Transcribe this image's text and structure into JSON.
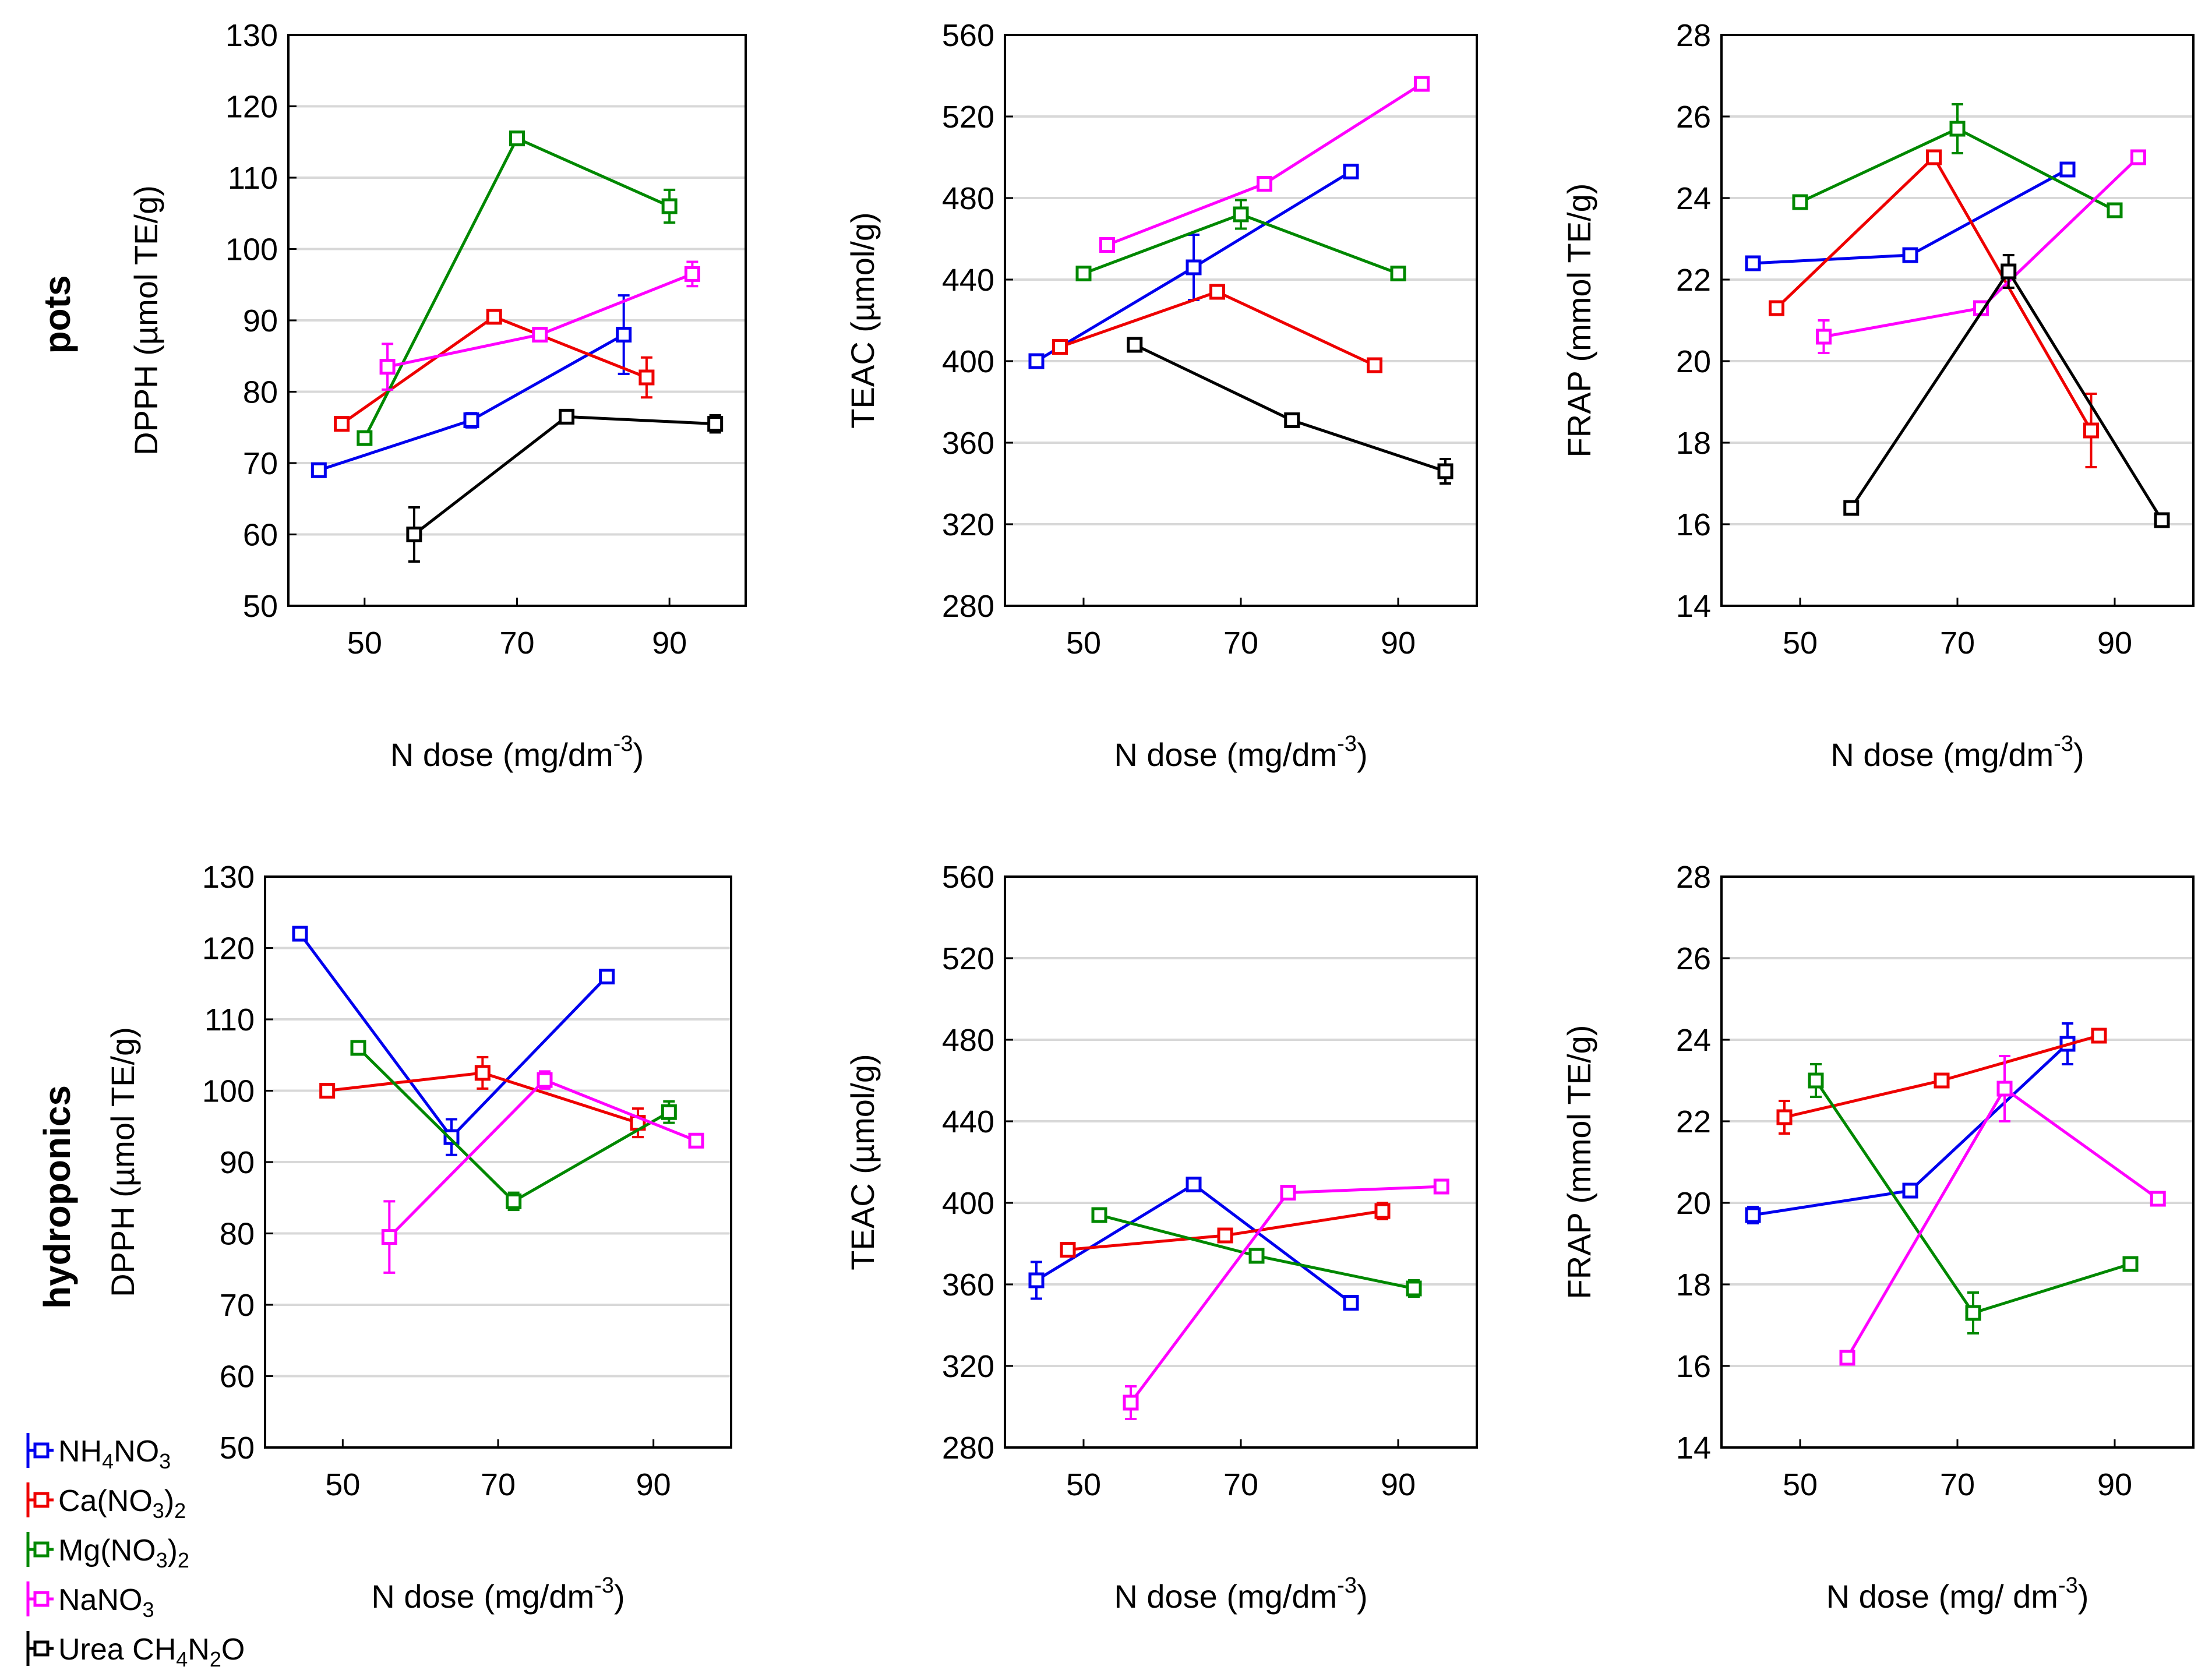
{
  "figure": {
    "row_labels": [
      "pots",
      "hydroponics"
    ],
    "legend": [
      {
        "name": "NH4NO3",
        "parts": [
          [
            "NH",
            ""
          ],
          [
            "4",
            "sub"
          ],
          [
            "NO",
            ""
          ],
          [
            "3",
            "sub"
          ]
        ],
        "color": "#0000ee"
      },
      {
        "name": "Ca(NO3)2",
        "parts": [
          [
            "Ca(NO",
            ""
          ],
          [
            "3",
            "sub"
          ],
          [
            ")",
            ""
          ],
          [
            "2",
            "sub"
          ]
        ],
        "color": "#ee0000"
      },
      {
        "name": "Mg(NO3)2",
        "parts": [
          [
            "Mg(NO",
            ""
          ],
          [
            "3",
            "sub"
          ],
          [
            ")",
            ""
          ],
          [
            "2",
            "sub"
          ]
        ],
        "color": "#008800"
      },
      {
        "name": "NaNO3",
        "parts": [
          [
            "NaNO",
            ""
          ],
          [
            "3",
            "sub"
          ]
        ],
        "color": "#ff00ff"
      },
      {
        "name": "Urea CH4N2O",
        "parts": [
          [
            "Urea CH",
            ""
          ],
          [
            "4",
            "sub"
          ],
          [
            "N",
            ""
          ],
          [
            "2",
            "sub"
          ],
          [
            "O",
            ""
          ]
        ],
        "color": "#000000"
      }
    ]
  },
  "chart_data": [
    {
      "type": "line",
      "title": "",
      "row": "pots",
      "ylabel": "DPPH (µmol TE/g)",
      "xlabel_main": "N dose (mg/dm",
      "xlabel_sup": "-3",
      "xlabel_end": ")",
      "xlim": [
        40,
        100
      ],
      "xticks": [
        50,
        70,
        90
      ],
      "ylim": [
        50,
        130
      ],
      "yticks": [
        50,
        60,
        70,
        80,
        90,
        100,
        110,
        120,
        130
      ],
      "series": [
        {
          "name": "NH4NO3",
          "color": "#0000ee",
          "x": [
            44,
            64,
            84
          ],
          "y": [
            69,
            76,
            88
          ],
          "err": [
            0.8,
            1,
            5.5
          ]
        },
        {
          "name": "Ca(NO3)2",
          "color": "#ee0000",
          "x": [
            47,
            67,
            87
          ],
          "y": [
            75.5,
            90.5,
            82
          ],
          "err": [
            0.5,
            0.7,
            2.8
          ]
        },
        {
          "name": "Mg(NO3)2",
          "color": "#008800",
          "x": [
            50,
            70,
            90
          ],
          "y": [
            73.5,
            115.5,
            106
          ],
          "err": [
            0.8,
            0.5,
            2.3
          ]
        },
        {
          "name": "NaNO3",
          "color": "#ff00ff",
          "x": [
            53,
            73,
            93
          ],
          "y": [
            83.5,
            88,
            96.5
          ],
          "err": [
            3.2,
            0.7,
            1.7
          ]
        },
        {
          "name": "Urea CH4N2O",
          "color": "#000000",
          "x": [
            56.5,
            76.5,
            96
          ],
          "y": [
            60,
            76.5,
            75.5
          ],
          "err": [
            3.8,
            0.7,
            1.2
          ]
        }
      ]
    },
    {
      "type": "line",
      "title": "",
      "row": "pots",
      "ylabel": "TEAC (µmol/g)",
      "xlabel_main": "N dose (mg/dm",
      "xlabel_sup": "-3",
      "xlabel_end": ")",
      "xlim": [
        40,
        100
      ],
      "xticks": [
        50,
        70,
        90
      ],
      "ylim": [
        280,
        560
      ],
      "yticks": [
        280,
        320,
        360,
        400,
        440,
        480,
        520,
        560
      ],
      "series": [
        {
          "name": "NH4NO3",
          "color": "#0000ee",
          "x": [
            44,
            64,
            84
          ],
          "y": [
            400,
            446,
            493
          ],
          "err": [
            2,
            16,
            3
          ]
        },
        {
          "name": "Ca(NO3)2",
          "color": "#ee0000",
          "x": [
            47,
            67,
            87
          ],
          "y": [
            407,
            434,
            398
          ],
          "err": [
            2,
            3,
            2
          ]
        },
        {
          "name": "Mg(NO3)2",
          "color": "#008800",
          "x": [
            50,
            70,
            90
          ],
          "y": [
            443,
            472,
            443
          ],
          "err": [
            2,
            7,
            2
          ]
        },
        {
          "name": "NaNO3",
          "color": "#ff00ff",
          "x": [
            53,
            73,
            93
          ],
          "y": [
            457,
            487,
            536
          ],
          "err": [
            2,
            2,
            2
          ]
        },
        {
          "name": "Urea CH4N2O",
          "color": "#000000",
          "x": [
            56.5,
            76.5,
            96
          ],
          "y": [
            408,
            371,
            346
          ],
          "err": [
            2,
            2,
            6
          ]
        }
      ]
    },
    {
      "type": "line",
      "title": "",
      "row": "pots",
      "ylabel": "FRAP (mmol TE/g)",
      "xlabel_main": "N dose (mg/dm",
      "xlabel_sup": "-3",
      "xlabel_end": ")",
      "xlim": [
        40,
        100
      ],
      "xticks": [
        50,
        70,
        90
      ],
      "ylim": [
        14,
        28
      ],
      "yticks": [
        14,
        16,
        18,
        20,
        22,
        24,
        26,
        28
      ],
      "series": [
        {
          "name": "NH4NO3",
          "color": "#0000ee",
          "x": [
            44,
            64,
            84
          ],
          "y": [
            22.4,
            22.6,
            24.7
          ],
          "err": [
            0.1,
            0.1,
            0.1
          ]
        },
        {
          "name": "Ca(NO3)2",
          "color": "#ee0000",
          "x": [
            47,
            67,
            87
          ],
          "y": [
            21.3,
            25,
            18.3
          ],
          "err": [
            0.1,
            0.1,
            0.9
          ]
        },
        {
          "name": "Mg(NO3)2",
          "color": "#008800",
          "x": [
            50,
            70,
            90
          ],
          "y": [
            23.9,
            25.7,
            23.7
          ],
          "err": [
            0.1,
            0.6,
            0.1
          ]
        },
        {
          "name": "NaNO3",
          "color": "#ff00ff",
          "x": [
            53,
            73,
            93
          ],
          "y": [
            20.6,
            21.3,
            25
          ],
          "err": [
            0.4,
            0.1,
            0.1
          ]
        },
        {
          "name": "Urea CH4N2O",
          "color": "#000000",
          "x": [
            56.5,
            76.5,
            96
          ],
          "y": [
            16.4,
            22.2,
            16.1
          ],
          "err": [
            0.1,
            0.4,
            0.1
          ]
        }
      ]
    },
    {
      "type": "line",
      "title": "",
      "row": "hydroponics",
      "ylabel": "DPPH (µmol TE/g)",
      "xlabel_main": "N dose (mg/dm",
      "xlabel_sup": "-3",
      "xlabel_end": ")",
      "xlim": [
        40,
        100
      ],
      "xticks": [
        50,
        70,
        90
      ],
      "ylim": [
        50,
        130
      ],
      "yticks": [
        50,
        60,
        70,
        80,
        90,
        100,
        110,
        120,
        130
      ],
      "series": [
        {
          "name": "NH4NO3",
          "color": "#0000ee",
          "x": [
            44.5,
            64,
            84
          ],
          "y": [
            122,
            93.5,
            116
          ],
          "err": [
            0.5,
            2.5,
            0.5
          ]
        },
        {
          "name": "Ca(NO3)2",
          "color": "#ee0000",
          "x": [
            48,
            68,
            88
          ],
          "y": [
            100,
            102.5,
            95.5
          ],
          "err": [
            0.5,
            2.2,
            2
          ]
        },
        {
          "name": "Mg(NO3)2",
          "color": "#008800",
          "x": [
            52,
            72,
            92
          ],
          "y": [
            106,
            84.5,
            97
          ],
          "err": [
            0.8,
            1.2,
            1.5
          ]
        },
        {
          "name": "NaNO3",
          "color": "#ff00ff",
          "x": [
            56,
            76,
            95.5
          ],
          "y": [
            79.5,
            101.5,
            93
          ],
          "err": [
            5,
            1.2,
            0.5
          ]
        }
      ]
    },
    {
      "type": "line",
      "title": "",
      "row": "hydroponics",
      "ylabel": "TEAC (µmol/g)",
      "xlabel_main": "N dose (mg/dm",
      "xlabel_sup": "-3",
      "xlabel_end": ")",
      "xlim": [
        40,
        100
      ],
      "xticks": [
        50,
        70,
        90
      ],
      "ylim": [
        280,
        560
      ],
      "yticks": [
        280,
        320,
        360,
        400,
        440,
        480,
        520,
        560
      ],
      "series": [
        {
          "name": "NH4NO3",
          "color": "#0000ee",
          "x": [
            44,
            64,
            84
          ],
          "y": [
            362,
            409,
            351
          ],
          "err": [
            9,
            2,
            2
          ]
        },
        {
          "name": "Ca(NO3)2",
          "color": "#ee0000",
          "x": [
            48,
            68,
            88
          ],
          "y": [
            377,
            384,
            396
          ],
          "err": [
            2,
            3,
            4
          ]
        },
        {
          "name": "Mg(NO3)2",
          "color": "#008800",
          "x": [
            52,
            72,
            92
          ],
          "y": [
            394,
            374,
            358
          ],
          "err": [
            2,
            3,
            4
          ]
        },
        {
          "name": "NaNO3",
          "color": "#ff00ff",
          "x": [
            56,
            76,
            95.5
          ],
          "y": [
            302,
            405,
            408
          ],
          "err": [
            8,
            2,
            2
          ]
        }
      ]
    },
    {
      "type": "line",
      "title": "",
      "row": "hydroponics",
      "ylabel": "FRAP (mmol TE/g)",
      "xlabel_main": "N dose (mg/ dm",
      "xlabel_sup": "-3",
      "xlabel_end": ")",
      "xlim": [
        40,
        100
      ],
      "xticks": [
        50,
        70,
        90
      ],
      "ylim": [
        14,
        28
      ],
      "yticks": [
        14,
        16,
        18,
        20,
        22,
        24,
        26,
        28
      ],
      "series": [
        {
          "name": "NH4NO3",
          "color": "#0000ee",
          "x": [
            44,
            64,
            84
          ],
          "y": [
            19.7,
            20.3,
            23.9
          ],
          "err": [
            0.2,
            0.1,
            0.5
          ]
        },
        {
          "name": "Ca(NO3)2",
          "color": "#ee0000",
          "x": [
            48,
            68,
            88
          ],
          "y": [
            22.1,
            23,
            24.1
          ],
          "err": [
            0.4,
            0.1,
            0.1
          ]
        },
        {
          "name": "Mg(NO3)2",
          "color": "#008800",
          "x": [
            52,
            72,
            92
          ],
          "y": [
            23,
            17.3,
            18.5
          ],
          "err": [
            0.4,
            0.5,
            0.1
          ]
        },
        {
          "name": "NaNO3",
          "color": "#ff00ff",
          "x": [
            56,
            76,
            95.5
          ],
          "y": [
            16.2,
            22.8,
            20.1
          ],
          "err": [
            0.1,
            0.8,
            0.1
          ]
        }
      ]
    }
  ]
}
